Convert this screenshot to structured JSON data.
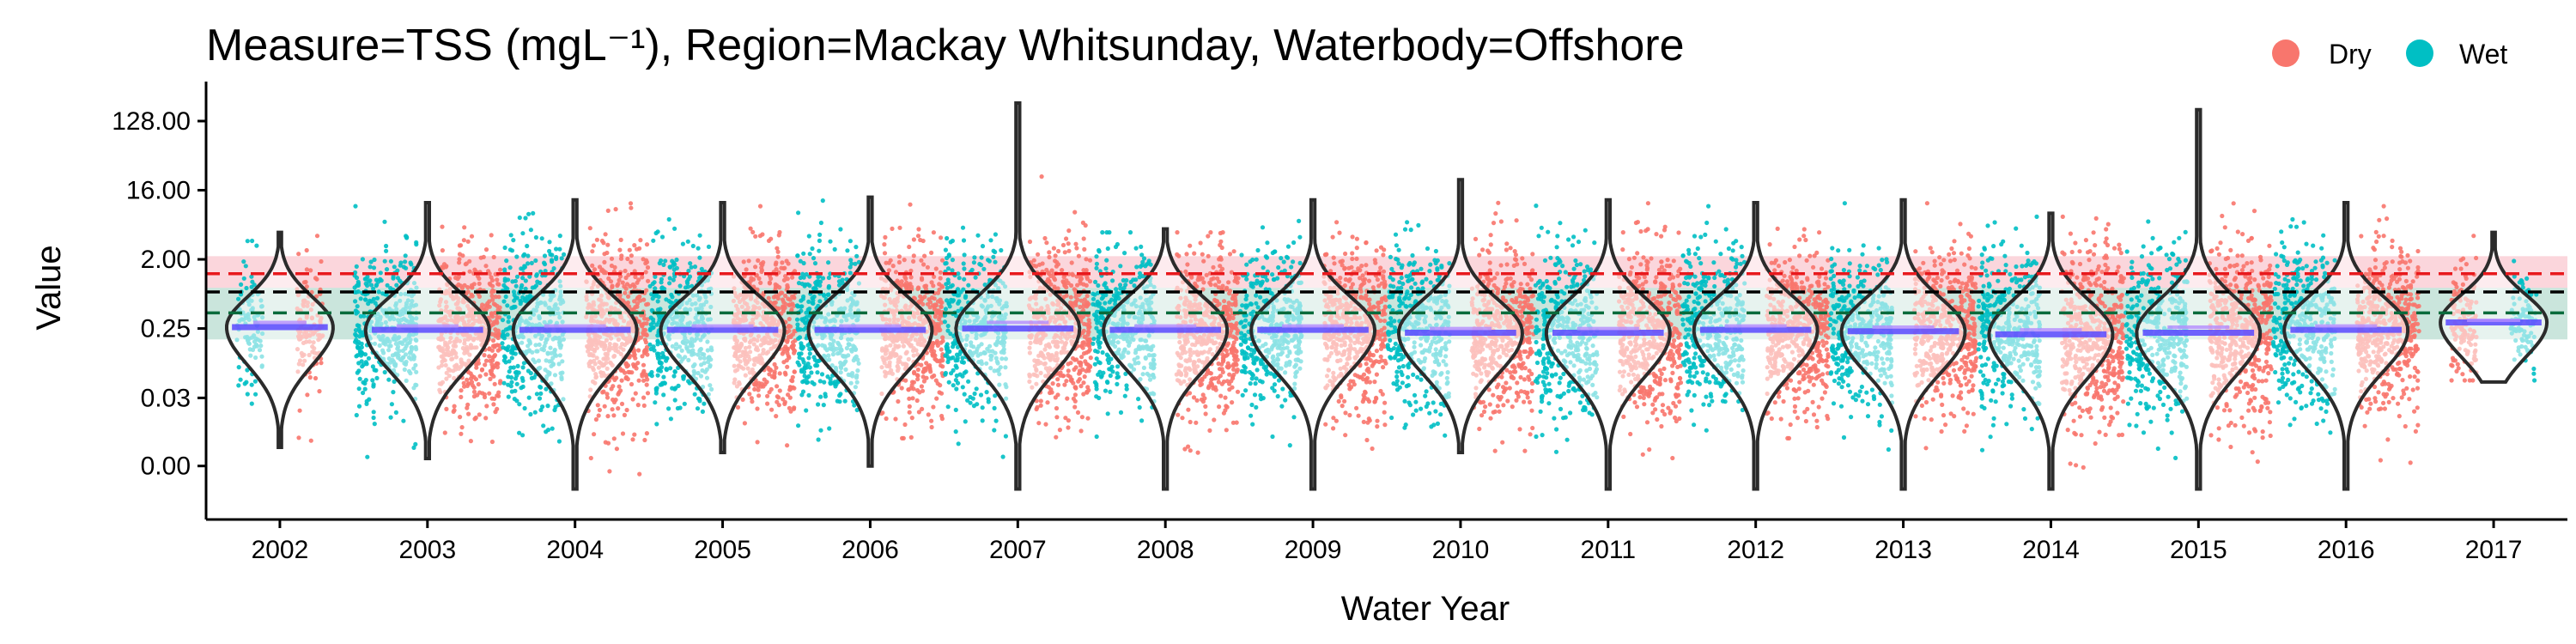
{
  "chart_data": {
    "type": "violin-jitter",
    "title": "Measure=TSS (mgL⁻¹), Region=Mackay Whitsunday, Waterbody=Offshore",
    "xlabel": "Water Year",
    "ylabel": "Value",
    "y_scale": "log2",
    "y_ticks": [
      0.004,
      0.031,
      0.25,
      2,
      16,
      128
    ],
    "y_tick_labels": [
      "0.00",
      "0.03",
      "0.25",
      "2.00",
      "16.00",
      "128.00"
    ],
    "ylim": [
      0.0008,
      420
    ],
    "categories": [
      "2002",
      "2003",
      "2004",
      "2005",
      "2006",
      "2007",
      "2008",
      "2009",
      "2010",
      "2011",
      "2012",
      "2013",
      "2014",
      "2015",
      "2016",
      "2017"
    ],
    "legend": {
      "position": "top-right",
      "entries": [
        {
          "name": "Dry",
          "color": "#F8766D"
        },
        {
          "name": "Wet",
          "color": "#00BFC4"
        }
      ]
    },
    "reference_lines": [
      {
        "value": 1.3,
        "color": "#e8191d",
        "band": [
          0.85,
          2.2
        ],
        "band_color": "#f7b5c0"
      },
      {
        "value": 0.75,
        "color": "#000000",
        "band": null,
        "band_color": null
      },
      {
        "value": 0.4,
        "color": "#0a6b3c",
        "band": [
          0.18,
          0.85
        ],
        "band_color": "#9fd0c0"
      }
    ],
    "violins": [
      {
        "year": "2002",
        "min": 0.007,
        "max": 4.5,
        "median": 0.26,
        "mean": 0.3,
        "spread": 0.7
      },
      {
        "year": "2003",
        "min": 0.005,
        "max": 11,
        "median": 0.24,
        "mean": 0.27,
        "spread": 0.9
      },
      {
        "year": "2004",
        "min": 0.002,
        "max": 12,
        "median": 0.24,
        "mean": 0.27,
        "spread": 1.0
      },
      {
        "year": "2005",
        "min": 0.006,
        "max": 11,
        "median": 0.24,
        "mean": 0.27,
        "spread": 0.9
      },
      {
        "year": "2006",
        "min": 0.004,
        "max": 13,
        "median": 0.24,
        "mean": 0.27,
        "spread": 0.9
      },
      {
        "year": "2007",
        "min": 0.002,
        "max": 220,
        "median": 0.25,
        "mean": 0.3,
        "spread": 1.0
      },
      {
        "year": "2008",
        "min": 0.002,
        "max": 5,
        "median": 0.24,
        "mean": 0.27,
        "spread": 0.9
      },
      {
        "year": "2009",
        "min": 0.002,
        "max": 12,
        "median": 0.24,
        "mean": 0.27,
        "spread": 0.9
      },
      {
        "year": "2010",
        "min": 0.006,
        "max": 22,
        "median": 0.22,
        "mean": 0.25,
        "spread": 0.9
      },
      {
        "year": "2011",
        "min": 0.002,
        "max": 12,
        "median": 0.22,
        "mean": 0.25,
        "spread": 1.0
      },
      {
        "year": "2012",
        "min": 0.002,
        "max": 11,
        "median": 0.24,
        "mean": 0.27,
        "spread": 0.9
      },
      {
        "year": "2013",
        "min": 0.002,
        "max": 12,
        "median": 0.23,
        "mean": 0.26,
        "spread": 0.9
      },
      {
        "year": "2014",
        "min": 0.002,
        "max": 8,
        "median": 0.21,
        "mean": 0.24,
        "spread": 1.0
      },
      {
        "year": "2015",
        "min": 0.002,
        "max": 180,
        "median": 0.22,
        "mean": 0.26,
        "spread": 1.0
      },
      {
        "year": "2016",
        "min": 0.002,
        "max": 11,
        "median": 0.24,
        "mean": 0.27,
        "spread": 0.9
      },
      {
        "year": "2017",
        "min": 0.05,
        "max": 4.5,
        "median": 0.3,
        "mean": 0.32,
        "spread": 0.5
      }
    ]
  }
}
